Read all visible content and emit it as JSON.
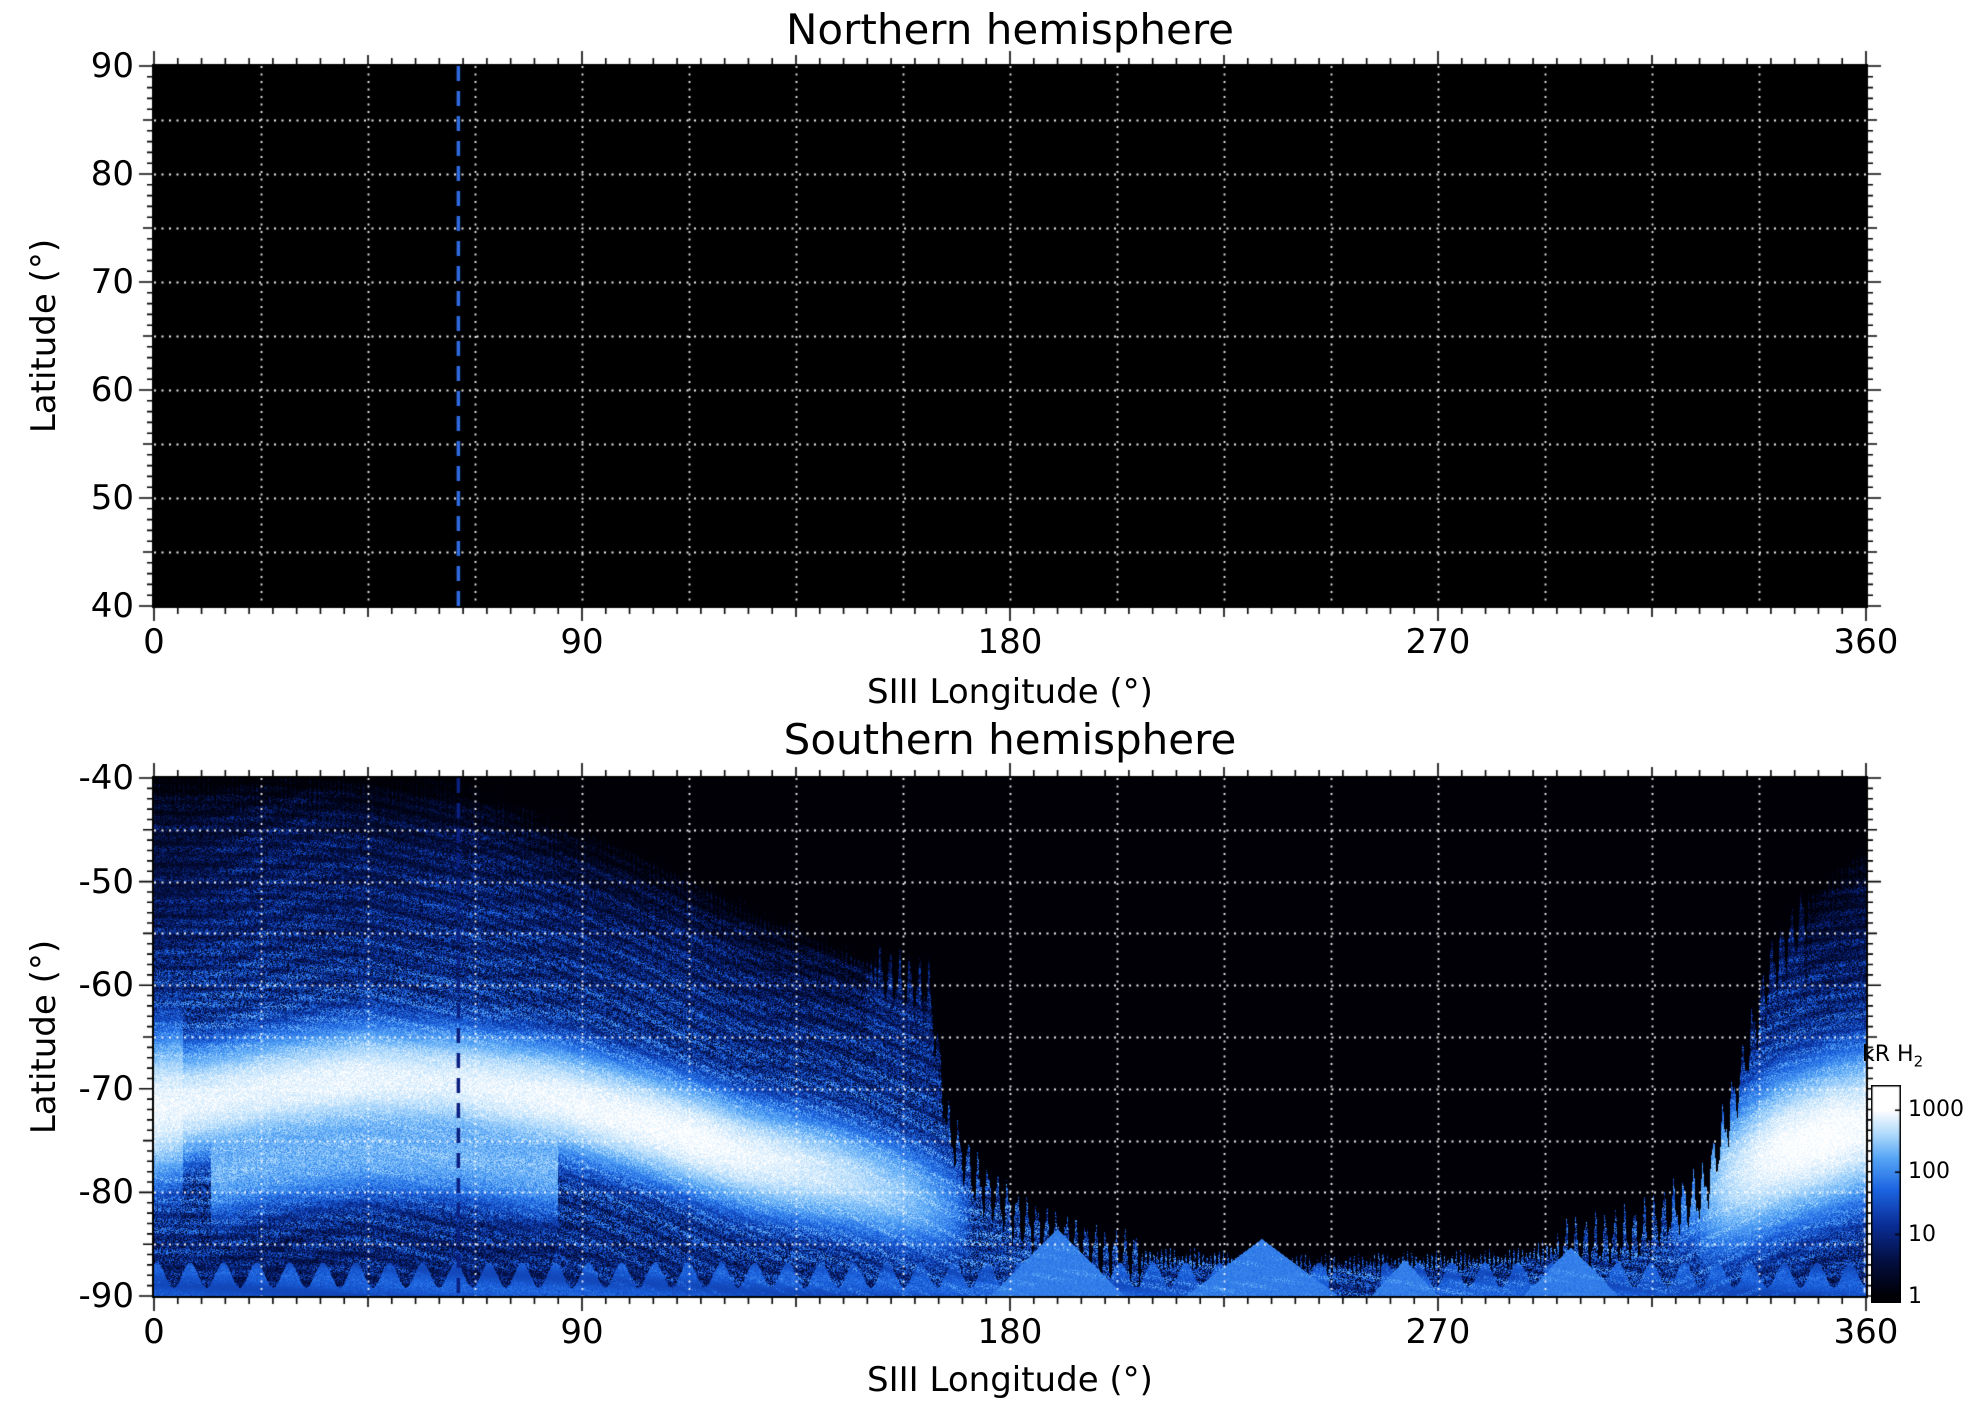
{
  "figure": {
    "background": "#ffffff",
    "text_color": "#000000"
  },
  "chart_data": [
    {
      "type": "heatmap",
      "title": "Northern hemisphere",
      "xlabel": "SIII Longitude (°)",
      "ylabel": "Latitude (°)",
      "xlim": [
        0,
        360
      ],
      "ylim": [
        40,
        90
      ],
      "xticks": [
        "0",
        "90",
        "180",
        "270",
        "360"
      ],
      "yticks": [
        "90",
        "80",
        "70",
        "60",
        "50",
        "40"
      ],
      "x_minor_step": 5,
      "y_minor_step": 1,
      "grid": {
        "style": "dotted",
        "color": "#ffffff",
        "lon_step": 22.5,
        "lat_step": 5
      },
      "background": "#000000",
      "marker_line": {
        "longitude": 64,
        "style": "dashed",
        "color": "#2e6be0"
      },
      "emission": "none visible (panel entirely black / below 1 kR)"
    },
    {
      "type": "heatmap",
      "title": "Southern hemisphere",
      "xlabel": "SIII Longitude (°)",
      "ylabel": "Latitude (°)",
      "xlim": [
        0,
        360
      ],
      "ylim": [
        -90,
        -40
      ],
      "xticks": [
        "0",
        "90",
        "180",
        "270",
        "360"
      ],
      "yticks": [
        "-40",
        "-50",
        "-60",
        "-70",
        "-80",
        "-90"
      ],
      "x_minor_step": 5,
      "y_minor_step": 1,
      "grid": {
        "style": "dotted",
        "color": "#ffffff",
        "lon_step": 22.5,
        "lat_step": 5
      },
      "background": "#000000",
      "marker_line": {
        "longitude": 64,
        "style": "dashed",
        "color": "#0a2080"
      },
      "colorbar": {
        "label": "kR H",
        "label_sub": "2",
        "ticks": [
          "1000",
          "100",
          "10",
          "1"
        ],
        "scale": "log",
        "colormap_stops": [
          [
            1,
            "#000006"
          ],
          [
            10,
            "#0a2d96"
          ],
          [
            100,
            "#1c64dc"
          ],
          [
            1000,
            "#ffffff"
          ]
        ]
      },
      "aurora": {
        "description": "Speckled H2 auroral emission filling the polar cap at left and far right, bright white main oval arc, large black no-emission void at mid longitudes, blue band and wedge artifacts near the pole",
        "emission_upper_boundary_deg": [
          [
            0,
            -40
          ],
          [
            60,
            -40
          ],
          [
            95,
            -46
          ],
          [
            125,
            -53
          ],
          [
            155,
            -59
          ],
          [
            163,
            -60
          ],
          [
            167,
            -74
          ],
          [
            173,
            -79
          ],
          [
            183,
            -83
          ],
          [
            200,
            -86
          ],
          [
            240,
            -87
          ],
          [
            285,
            -86.5
          ],
          [
            312,
            -84
          ],
          [
            326,
            -80
          ],
          [
            333,
            -70
          ],
          [
            340,
            -58
          ],
          [
            348,
            -52
          ],
          [
            360,
            -47
          ]
        ],
        "main_oval_latitude_deg": [
          [
            0,
            -72
          ],
          [
            25,
            -70
          ],
          [
            45,
            -69
          ],
          [
            65,
            -69.5
          ],
          [
            85,
            -71
          ],
          [
            105,
            -73.5
          ],
          [
            125,
            -76.5
          ],
          [
            145,
            -78.5
          ],
          [
            160,
            -80.5
          ],
          [
            170,
            -82
          ],
          [
            320,
            -82
          ],
          [
            332,
            -78.5
          ],
          [
            342,
            -76
          ],
          [
            352,
            -74.5
          ],
          [
            360,
            -73.5
          ]
        ],
        "main_oval_peak_kr": [
          [
            0,
            950
          ],
          [
            20,
            850
          ],
          [
            40,
            900
          ],
          [
            60,
            800
          ],
          [
            80,
            950
          ],
          [
            100,
            1050
          ],
          [
            115,
            1100
          ],
          [
            130,
            850
          ],
          [
            145,
            550
          ],
          [
            158,
            300
          ],
          [
            166,
            120
          ],
          [
            172,
            0
          ],
          [
            318,
            0
          ],
          [
            326,
            150
          ],
          [
            334,
            700
          ],
          [
            342,
            1150
          ],
          [
            352,
            1250
          ],
          [
            360,
            1050
          ]
        ],
        "secondary_arc": {
          "lon_range": [
            12,
            85
          ],
          "offset_deg": -7.2,
          "peak_kr": 240
        },
        "bottom_band": {
          "top_latitude": -88,
          "wedges": [
            [
              190,
              -83.5,
              14
            ],
            [
              233,
              -84.5,
              16
            ],
            [
              263,
              -86.5,
              7
            ],
            [
              298,
              -85.3,
              10
            ]
          ],
          "gap_lon": [
            247,
            258
          ]
        }
      }
    }
  ]
}
